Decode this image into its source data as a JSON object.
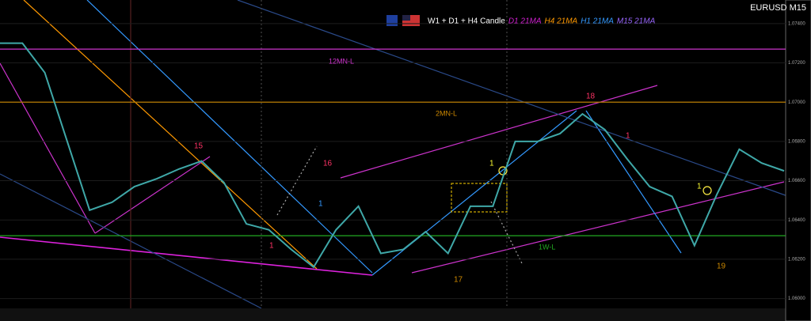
{
  "chart_data": {
    "type": "line",
    "title": "EURUSD M15",
    "legend": [
      "W1 + D1 + H4 Candle",
      "D1 21MA",
      "H4 21MA",
      "H1 21MA",
      "M15 21MA"
    ],
    "legend_colors": [
      "#ffffff",
      "#d020d0",
      "#ff9900",
      "#3399ff",
      "#9966ff"
    ],
    "series": [
      {
        "name": "EURUSD",
        "color": "#3fa8a8",
        "values": [
          1.073,
          1.073,
          1.0715,
          1.068,
          1.0645,
          1.0649,
          1.0657,
          1.0661,
          1.0666,
          1.067,
          1.0659,
          1.0638,
          1.0635,
          1.0625,
          1.0616,
          1.0635,
          1.0647,
          1.0623,
          1.0625,
          1.0634,
          1.0623,
          1.0647,
          1.0647,
          1.068,
          1.068,
          1.0684,
          1.0694,
          1.0686,
          1.0671,
          1.0657,
          1.0652,
          1.0627,
          1.0653,
          1.0676,
          1.0669,
          1.0665
        ]
      }
    ],
    "levels": [
      {
        "name": "12MN-L",
        "value": 1.0727,
        "color": "#cc33cc"
      },
      {
        "name": "2MN-L",
        "value": 1.07,
        "color": "#cc8800"
      },
      {
        "name": "1W-L",
        "value": 1.0632,
        "color": "#22aa22"
      }
    ],
    "annotations": [
      {
        "text": "15",
        "color": "#ff3366"
      },
      {
        "text": "16",
        "color": "#ff3366"
      },
      {
        "text": "17",
        "color": "#cc8800"
      },
      {
        "text": "18",
        "color": "#ff3366"
      },
      {
        "text": "19",
        "color": "#cc8800"
      },
      {
        "text": "1",
        "color": "#3399ff"
      },
      {
        "text": "1",
        "color": "#ff3366"
      },
      {
        "text": "1",
        "color": "#ffff33"
      },
      {
        "text": "1",
        "color": "#ff3366"
      },
      {
        "text": "1",
        "color": "#ffff33"
      }
    ],
    "ylim": [
      1.0595,
      1.075
    ],
    "yticks": [
      {
        "value": 1.06,
        "label": "1.06000"
      },
      {
        "value": 1.062,
        "label": "1.06200"
      },
      {
        "value": 1.064,
        "label": "1.06400"
      },
      {
        "value": 1.066,
        "label": "1.06600"
      },
      {
        "value": 1.068,
        "label": "1.06800"
      },
      {
        "value": 1.07,
        "label": "1.07000"
      },
      {
        "value": 1.072,
        "label": "1.07200"
      },
      {
        "value": 1.074,
        "label": "1.07400"
      }
    ],
    "grid": true
  }
}
